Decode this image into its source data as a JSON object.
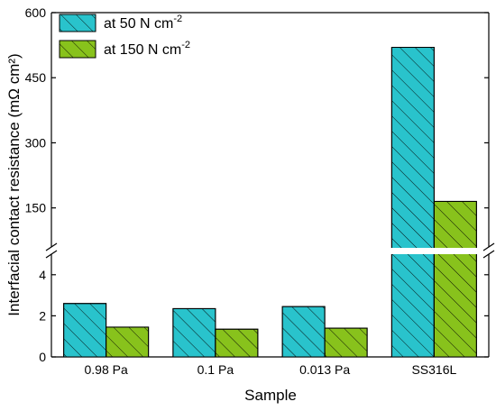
{
  "chart_data": {
    "type": "bar",
    "xlabel": "Sample",
    "ylabel": "Interfacial contact resistance (mΩ cm²)",
    "categories": [
      "0.98 Pa",
      "0.1 Pa",
      "0.013 Pa",
      "SS316L"
    ],
    "series": [
      {
        "name": "at 50 N cm-2",
        "name_base": "at 50 N cm",
        "name_sup": "-2",
        "color": "#29c3cc",
        "values": [
          2.6,
          2.35,
          2.45,
          520
        ]
      },
      {
        "name": "at 150 N cm-2",
        "name_base": "at 150 N cm",
        "name_sup": "-2",
        "color": "#88c21c",
        "values": [
          1.45,
          1.35,
          1.4,
          165
        ]
      }
    ],
    "y_axis_break": true,
    "lower_segment": {
      "ylim": [
        0,
        5
      ],
      "ticks": [
        "0",
        "2",
        "4"
      ]
    },
    "upper_segment": {
      "ylim": [
        60,
        600
      ],
      "ticks": [
        "150",
        "300",
        "450",
        "600"
      ]
    },
    "bar_pattern": "diagonal-hatch",
    "legend_position": "top-left",
    "grid": false
  }
}
